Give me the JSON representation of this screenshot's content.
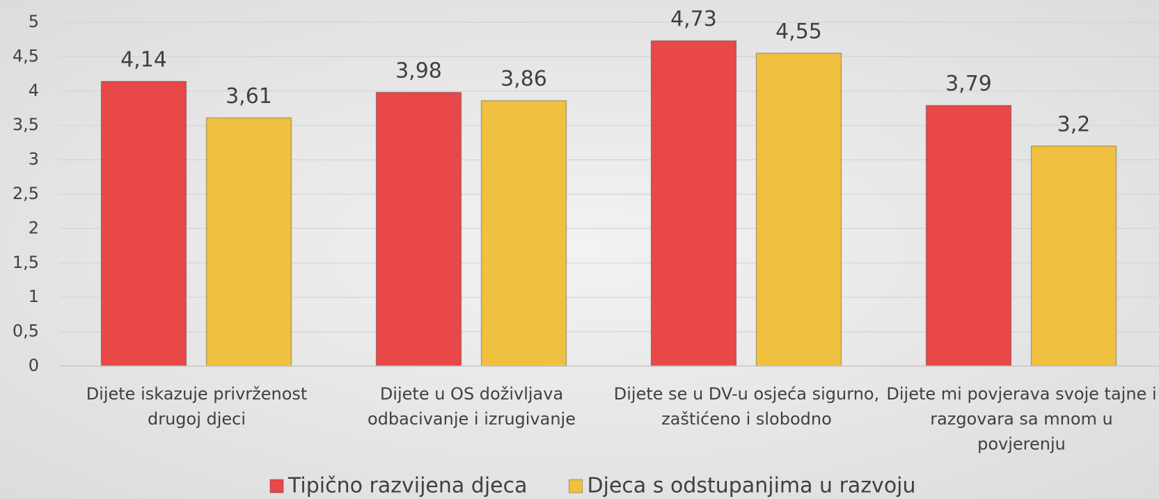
{
  "chart_data": {
    "type": "bar",
    "categories": [
      "Dijete iskazuje privrženost drugoj djeci",
      "Dijete u OS doživljava odbacivanje i izrugivanje",
      "Dijete se u DV-u osjeća sigurno, zaštićeno i slobodno",
      "Dijete mi povjerava svoje tajne i razgovara sa mnom u povjerenju"
    ],
    "series": [
      {
        "name": "Tipično razvijena djeca",
        "color": "#e84848",
        "values": [
          4.14,
          3.98,
          4.73,
          3.79
        ],
        "value_labels": [
          "4,14",
          "3,98",
          "4,73",
          "3,79"
        ]
      },
      {
        "name": "Djeca s odstupanjima u razvoju",
        "color": "#f0c040",
        "values": [
          3.61,
          3.86,
          4.55,
          3.2
        ],
        "value_labels": [
          "3,61",
          "3,86",
          "4,55",
          "3,2"
        ]
      }
    ],
    "ylim": [
      0,
      5
    ],
    "yticks": [
      0,
      {
        "value": 0.5,
        "label": "0,5"
      },
      1,
      {
        "value": 1.5,
        "label": "1,5"
      },
      2,
      {
        "value": 2.5,
        "label": "2,5"
      },
      3,
      {
        "value": 3.5,
        "label": "3,5"
      },
      4,
      {
        "value": 4.5,
        "label": "4,5"
      },
      5
    ],
    "grid": true,
    "legend": "bottom"
  }
}
